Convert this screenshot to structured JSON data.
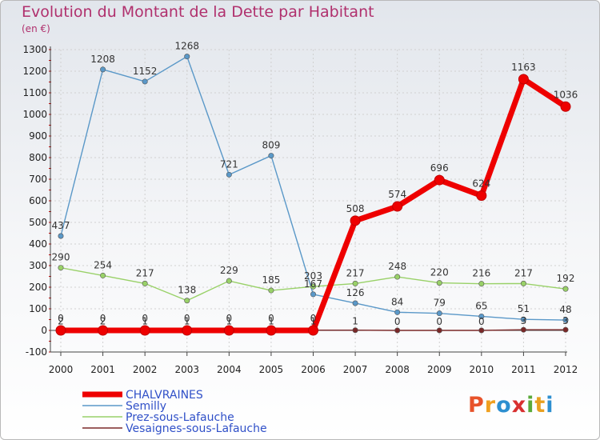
{
  "title": "Evolution du Montant de la Dette par Habitant",
  "unit_label": "(en €)",
  "logo": "Proxiti",
  "colors": {
    "title": "#b0306d",
    "legend_text": "#3050c8"
  },
  "chart_data": {
    "type": "line",
    "title": "Evolution du Montant de la Dette par Habitant",
    "ylabel": "(en €)",
    "xlabel": "",
    "ylim": [
      -100,
      1300
    ],
    "yticks": [
      -100,
      0,
      100,
      200,
      300,
      400,
      500,
      600,
      700,
      800,
      900,
      1000,
      1100,
      1200,
      1300
    ],
    "grid": true,
    "legend": "bottom-left",
    "x": [
      "2000",
      "2001",
      "2002",
      "2003",
      "2004",
      "2005",
      "2006",
      "2007",
      "2008",
      "2009",
      "2010",
      "2011",
      "2012"
    ],
    "series": [
      {
        "name": "Semilly",
        "color": "#5a98c8",
        "values": [
          437,
          1208,
          1152,
          1268,
          721,
          809,
          167,
          126,
          84,
          79,
          65,
          51,
          48
        ],
        "labels": [
          "437",
          "1208",
          "1152",
          "1268",
          "721",
          "809",
          "167",
          "126",
          "84",
          "79",
          "65",
          "51",
          "48"
        ]
      },
      {
        "name": "Prez-sous-Lafauche",
        "color": "#99d168",
        "values": [
          290,
          254,
          217,
          138,
          229,
          185,
          203,
          217,
          248,
          220,
          216,
          217,
          192
        ],
        "labels": [
          "290",
          "254",
          "217",
          "138",
          "229",
          "185",
          "203",
          "217",
          "248",
          "220",
          "216",
          "217",
          "192"
        ]
      },
      {
        "name": "Vesaignes-sous-Lafauche",
        "color": "#7a2828",
        "values": [
          2,
          2,
          1,
          1,
          1,
          1,
          1,
          1,
          0,
          0,
          0,
          3,
          3
        ],
        "labels": [
          "2",
          "2",
          "1",
          "1",
          "1",
          "1",
          "1",
          "1",
          "0",
          "0",
          "0",
          "3",
          "3"
        ]
      },
      {
        "name": "CHALVRAINES",
        "color": "#ee0000",
        "values": [
          0,
          0,
          0,
          0,
          0,
          0,
          0,
          508,
          574,
          696,
          624,
          1163,
          1036
        ],
        "labels": [
          "0",
          "0",
          "0",
          "0",
          "0",
          "0",
          "0",
          "508",
          "574",
          "696",
          "624",
          "1163",
          "1036"
        ]
      }
    ],
    "legend_order": [
      "CHALVRAINES",
      "Semilly",
      "Prez-sous-Lafauche",
      "Vesaignes-sous-Lafauche"
    ]
  }
}
